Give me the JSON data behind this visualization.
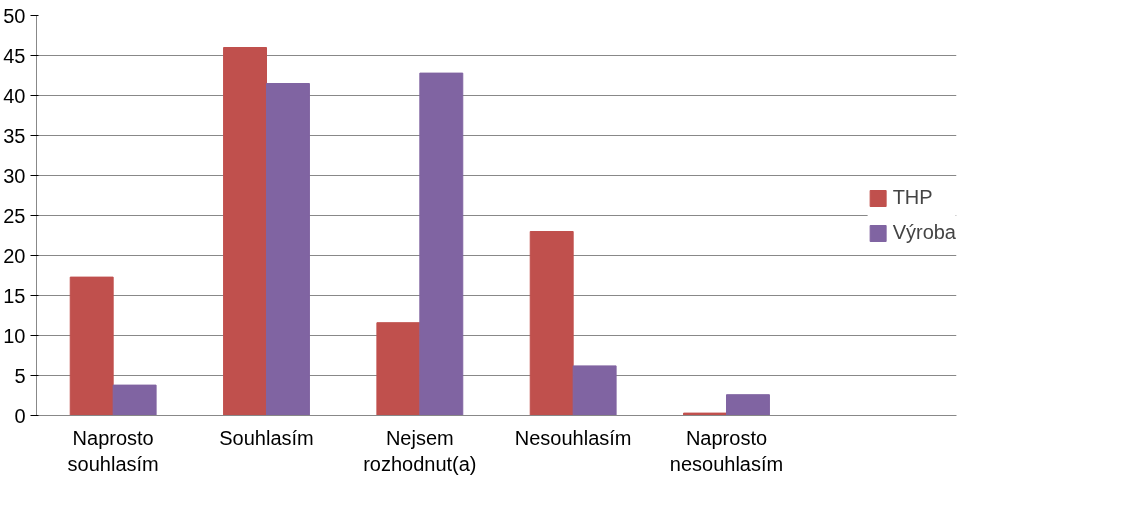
{
  "chart_data": {
    "type": "bar",
    "categories": [
      "Naprosto souhlasím",
      "Souhlasím",
      "Nejsem rozhodnut(a)",
      "Nesouhlasím",
      "Naprosto nesouhlasím",
      null
    ],
    "series": [
      {
        "name": "THP",
        "color": "#c0504d",
        "values": [
          17.3,
          46,
          11.6,
          23,
          0.3,
          null
        ]
      },
      {
        "name": "Výroba",
        "color": "#8064a2",
        "values": [
          3.8,
          41.5,
          42.8,
          6.2,
          2.6,
          null
        ]
      }
    ],
    "ylim": [
      0,
      50
    ],
    "yticks": [
      0,
      5,
      10,
      15,
      20,
      25,
      30,
      35,
      40,
      45,
      50
    ],
    "grid": "y",
    "legend": "right"
  }
}
